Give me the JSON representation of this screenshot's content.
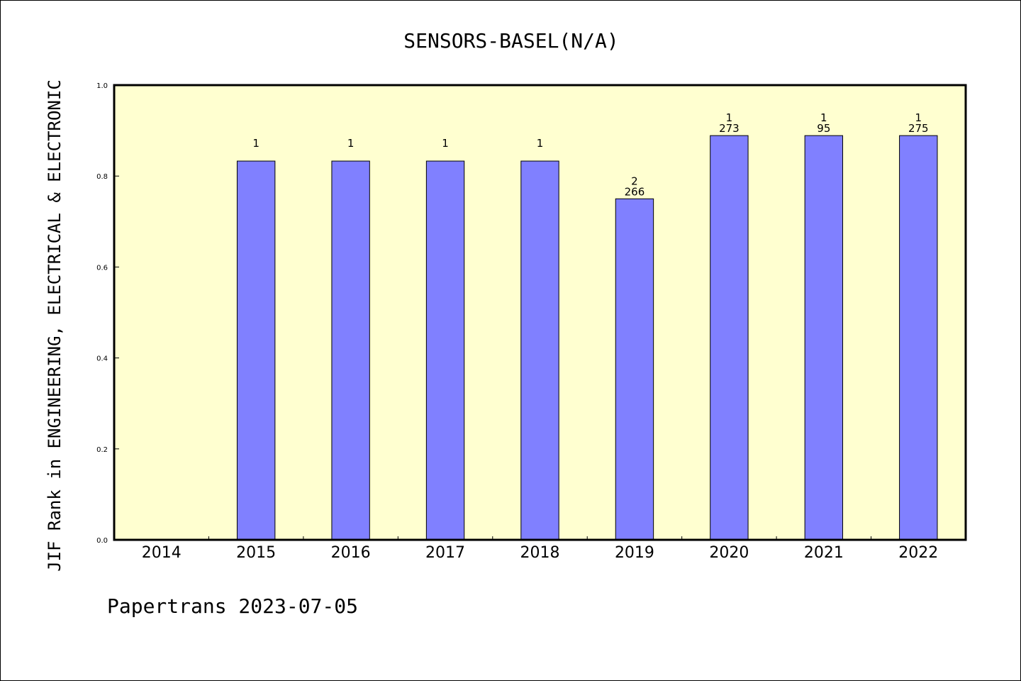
{
  "chart_data": {
    "type": "bar",
    "title": "SENSORS-BASEL(N/A)",
    "ylabel": "JIF Rank in ENGINEERING, ELECTRICAL & ELECTRONIC",
    "xlabel": "",
    "ylim": [
      0,
      1.0
    ],
    "yticks": [
      "0.0",
      "0.2",
      "0.4",
      "0.6",
      "0.8",
      "1.0"
    ],
    "categories": [
      "2014",
      "2015",
      "2016",
      "2017",
      "2018",
      "2019",
      "2020",
      "2021",
      "2022"
    ],
    "values": [
      null,
      0.833,
      0.833,
      0.833,
      0.833,
      0.75,
      0.889,
      0.889,
      0.889
    ],
    "bar_labels": [
      {
        "rank": "",
        "total": ""
      },
      {
        "rank": "1",
        "total": ""
      },
      {
        "rank": "1",
        "total": ""
      },
      {
        "rank": "1",
        "total": ""
      },
      {
        "rank": "1",
        "total": ""
      },
      {
        "rank": "2",
        "total": "266"
      },
      {
        "rank": "1",
        "total": "273"
      },
      {
        "rank": "1",
        "total": "95"
      },
      {
        "rank": "1",
        "total": "275"
      }
    ],
    "grid": false,
    "bar_color": "#8080ff",
    "plot_background": "#ffffd0"
  },
  "footer": "Papertrans 2023-07-05"
}
